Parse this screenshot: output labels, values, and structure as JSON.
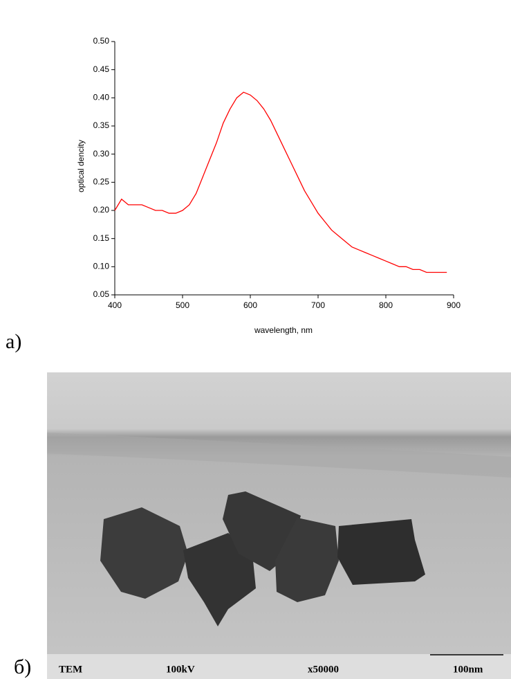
{
  "chart_data": {
    "type": "line",
    "x_label": "wavelength, nm",
    "y_label": "optical dencity",
    "x": [
      400,
      410,
      420,
      430,
      440,
      450,
      460,
      470,
      480,
      490,
      500,
      510,
      520,
      530,
      540,
      550,
      560,
      570,
      580,
      590,
      600,
      610,
      620,
      630,
      640,
      650,
      660,
      670,
      680,
      690,
      700,
      710,
      720,
      730,
      740,
      750,
      760,
      770,
      780,
      790,
      800,
      810,
      820,
      830,
      840,
      850,
      860,
      870,
      880,
      890
    ],
    "series": [
      {
        "color": "#ff0000",
        "values": [
          0.2,
          0.22,
          0.21,
          0.21,
          0.21,
          0.205,
          0.2,
          0.2,
          0.195,
          0.195,
          0.2,
          0.21,
          0.23,
          0.26,
          0.29,
          0.32,
          0.355,
          0.38,
          0.4,
          0.41,
          0.405,
          0.395,
          0.38,
          0.36,
          0.335,
          0.31,
          0.285,
          0.26,
          0.235,
          0.215,
          0.195,
          0.18,
          0.165,
          0.155,
          0.145,
          0.135,
          0.13,
          0.125,
          0.12,
          0.115,
          0.11,
          0.105,
          0.1,
          0.1,
          0.095,
          0.095,
          0.09,
          0.09,
          0.09,
          0.09
        ]
      }
    ],
    "xlim": [
      400,
      900
    ],
    "xticks": [
      400,
      500,
      600,
      700,
      800,
      900
    ],
    "ylim": [
      0.05,
      0.5
    ],
    "yticks": [
      0.05,
      {
        "value": 0.1,
        "label": "0.10"
      },
      0.15,
      {
        "value": 0.2,
        "label": "0.20"
      },
      0.25,
      {
        "value": 0.3,
        "label": "0.30"
      },
      0.35,
      {
        "value": 0.4,
        "label": "0.40"
      },
      0.45,
      {
        "value": 0.5,
        "label": "0.50"
      }
    ]
  },
  "panel_labels": {
    "a": "а)",
    "b": "б)"
  },
  "tem_info": [
    "TEM",
    "100kV",
    "x50000",
    "100nm"
  ]
}
